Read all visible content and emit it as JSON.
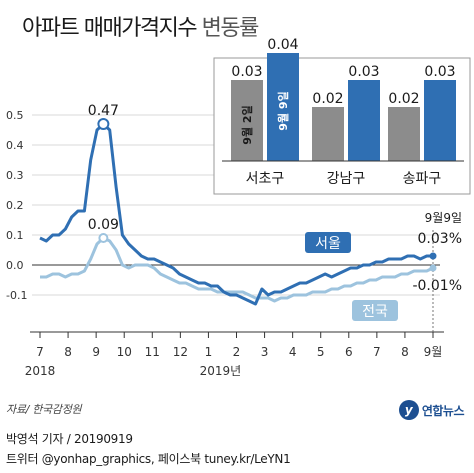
{
  "header": {
    "title_main": "아파트 매매가격지수",
    "title_sub": "변동률"
  },
  "source": "자료/ 한국감정원",
  "credit": {
    "line1": "박영석 기자 / 20190919",
    "line2": "트위터 @yonhap_graphics, 페이스북 tuney.kr/LeYN1"
  },
  "logo": {
    "icon": "yonhap-logo-icon",
    "text": "연합뉴스"
  },
  "chart_data": [
    {
      "type": "line",
      "ylim": [
        -0.15,
        0.55
      ],
      "yticks": [
        "0.5",
        "0.4",
        "0.3",
        "0.2",
        "0.1",
        "0.0",
        "-0.1"
      ],
      "ytick_values": [
        0.5,
        0.4,
        0.3,
        0.2,
        0.1,
        0.0,
        -0.1
      ],
      "xticks": [
        "7",
        "8",
        "9",
        "10",
        "11",
        "12",
        "1",
        "2",
        "3",
        "4",
        "5",
        "6",
        "7",
        "8",
        "9월"
      ],
      "year_labels": [
        "2018",
        "2019년"
      ],
      "grid": "horizontal",
      "colors": {
        "seoul": "#2f6fb3",
        "nation": "#9dc3de",
        "axis": "#333333",
        "grid": "#cccccc"
      },
      "annotations": {
        "peak_value": "0.47",
        "nation_peak": "0.09",
        "date": "9월9일",
        "seoul_last": "0.03%",
        "nation_last": "-0.01%"
      },
      "series": [
        {
          "name": "서울",
          "values": [
            0.09,
            0.08,
            0.1,
            0.1,
            0.12,
            0.16,
            0.18,
            0.18,
            0.35,
            0.45,
            0.47,
            0.45,
            0.26,
            0.1,
            0.07,
            0.05,
            0.03,
            0.02,
            0.02,
            0.01,
            0.0,
            -0.01,
            -0.03,
            -0.04,
            -0.05,
            -0.06,
            -0.06,
            -0.07,
            -0.07,
            -0.09,
            -0.1,
            -0.1,
            -0.11,
            -0.12,
            -0.13,
            -0.08,
            -0.1,
            -0.09,
            -0.09,
            -0.08,
            -0.07,
            -0.06,
            -0.06,
            -0.05,
            -0.04,
            -0.03,
            -0.04,
            -0.03,
            -0.02,
            -0.01,
            -0.01,
            0.0,
            0.0,
            0.01,
            0.01,
            0.02,
            0.02,
            0.02,
            0.03,
            0.03,
            0.02,
            0.03,
            0.03
          ]
        },
        {
          "name": "전국",
          "values": [
            -0.04,
            -0.04,
            -0.03,
            -0.03,
            -0.04,
            -0.03,
            -0.03,
            -0.02,
            0.02,
            0.07,
            0.09,
            0.08,
            0.05,
            0.0,
            -0.01,
            0.0,
            0.0,
            0.0,
            -0.01,
            -0.03,
            -0.04,
            -0.05,
            -0.06,
            -0.06,
            -0.07,
            -0.08,
            -0.08,
            -0.08,
            -0.09,
            -0.09,
            -0.09,
            -0.09,
            -0.09,
            -0.1,
            -0.11,
            -0.11,
            -0.11,
            -0.12,
            -0.11,
            -0.11,
            -0.1,
            -0.1,
            -0.1,
            -0.09,
            -0.09,
            -0.09,
            -0.08,
            -0.08,
            -0.07,
            -0.07,
            -0.06,
            -0.06,
            -0.05,
            -0.05,
            -0.04,
            -0.04,
            -0.04,
            -0.03,
            -0.03,
            -0.02,
            -0.02,
            -0.02,
            -0.01
          ]
        }
      ]
    },
    {
      "type": "bar",
      "categories": [
        "서초구",
        "강남구",
        "송파구"
      ],
      "legend": [
        "9월 2일",
        "9월 9일"
      ],
      "colors": {
        "prev": "#8c8c8c",
        "curr": "#2f6fb3"
      },
      "series": [
        {
          "name": "9월 2일",
          "values": [
            0.03,
            0.02,
            0.02
          ]
        },
        {
          "name": "9월 9일",
          "values": [
            0.04,
            0.03,
            0.03
          ]
        }
      ],
      "value_labels": [
        [
          "0.03",
          "0.04"
        ],
        [
          "0.02",
          "0.03"
        ],
        [
          "0.02",
          "0.03"
        ]
      ]
    }
  ]
}
